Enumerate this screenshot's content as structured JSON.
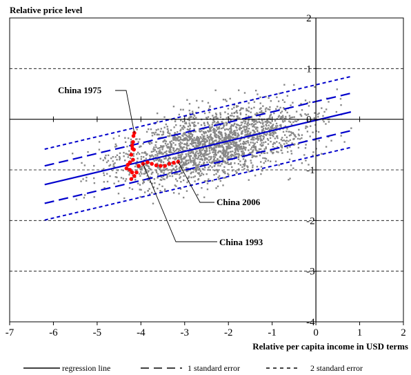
{
  "chart_data": {
    "type": "scatter",
    "title": "",
    "ylabel": "Relative price level",
    "xlabel": "Relative per capita income in USD terms",
    "xlim": [
      -7,
      2
    ],
    "ylim": [
      -4,
      2
    ],
    "x_ticks": [
      -7,
      -6,
      -5,
      -4,
      -3,
      -2,
      -1,
      0,
      1,
      2
    ],
    "y_ticks": [
      -4,
      -3,
      -2,
      -1,
      0,
      1,
      2
    ],
    "grid": "horizontal dashed at y = 1, -1, -2, -3",
    "legend": "bottom",
    "colors": {
      "scatter": "#888888",
      "china": "#ff0000",
      "lines": "#0000cc",
      "axis": "#000000"
    },
    "regression": {
      "intercept": -0.02,
      "slope": 0.205,
      "x_range": [
        -6.2,
        0.8
      ]
    },
    "bands": {
      "one_se_offset": 0.37,
      "two_se_offset": 0.7
    },
    "series": [
      {
        "name": "regression line",
        "style": "solid"
      },
      {
        "name": "1 standard error",
        "style": "long-dash"
      },
      {
        "name": "2 standard error",
        "style": "short-dash"
      }
    ],
    "china_points": [
      {
        "x": -4.15,
        "y": -0.27
      },
      {
        "x": -4.17,
        "y": -0.33
      },
      {
        "x": -4.18,
        "y": -0.45
      },
      {
        "x": -4.2,
        "y": -0.52
      },
      {
        "x": -4.19,
        "y": -0.58
      },
      {
        "x": -4.16,
        "y": -0.6
      },
      {
        "x": -4.22,
        "y": -0.7
      },
      {
        "x": -4.18,
        "y": -0.8
      },
      {
        "x": -4.25,
        "y": -0.85
      },
      {
        "x": -4.3,
        "y": -0.9
      },
      {
        "x": -4.33,
        "y": -0.97
      },
      {
        "x": -4.25,
        "y": -1.0
      },
      {
        "x": -4.2,
        "y": -1.05
      },
      {
        "x": -4.1,
        "y": -1.05
      },
      {
        "x": -4.15,
        "y": -1.12
      },
      {
        "x": -4.22,
        "y": -1.18
      },
      {
        "x": -4.05,
        "y": -0.92
      },
      {
        "x": -3.95,
        "y": -0.88
      },
      {
        "x": -3.85,
        "y": -0.85
      },
      {
        "x": -3.75,
        "y": -0.88
      },
      {
        "x": -3.65,
        "y": -0.91
      },
      {
        "x": -3.55,
        "y": -0.92
      },
      {
        "x": -3.45,
        "y": -0.92
      },
      {
        "x": -3.35,
        "y": -0.88
      },
      {
        "x": -3.25,
        "y": -0.86
      },
      {
        "x": -3.15,
        "y": -0.84
      }
    ],
    "annotations": [
      {
        "text": "China 1975",
        "target": {
          "x": -4.15,
          "y": -0.27
        }
      },
      {
        "text": "China 2006",
        "target": {
          "x": -3.15,
          "y": -0.84
        }
      },
      {
        "text": "China 1993",
        "target": {
          "x": -3.95,
          "y": -0.88
        }
      }
    ],
    "scatter_cloud": {
      "count": 2200,
      "x_center": -2.3,
      "x_spread": 1.5,
      "x_min": -6.2,
      "x_max": 0.85,
      "noise_sd": 0.33
    }
  },
  "legend": {
    "regression": "regression line",
    "one_se": "1 standard error",
    "two_se": "2 standard error"
  }
}
